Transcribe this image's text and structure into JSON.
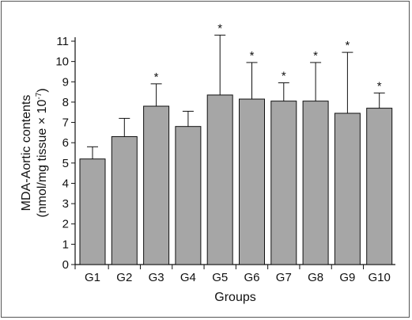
{
  "chart_data": {
    "type": "bar",
    "xlabel": "Groups",
    "ylabel_line1": "MDA-Aortic contents",
    "ylabel_line2": "(nmol/mg tissue × 10",
    "ylabel_sup": "-7",
    "ylabel_close": ")",
    "ylim": [
      0,
      11
    ],
    "yticks": [
      0,
      1,
      2,
      3,
      4,
      5,
      6,
      7,
      8,
      9,
      10,
      11
    ],
    "categories": [
      "G1",
      "G2",
      "G3",
      "G4",
      "G5",
      "G6",
      "G7",
      "G8",
      "G9",
      "G10"
    ],
    "values": [
      5.2,
      6.3,
      7.8,
      6.8,
      8.35,
      8.15,
      8.05,
      8.05,
      7.45,
      7.7
    ],
    "error_upper": [
      5.8,
      7.2,
      8.9,
      7.55,
      11.3,
      9.95,
      8.95,
      9.95,
      10.45,
      8.45
    ],
    "significance": [
      "",
      "",
      "*",
      "",
      "*",
      "*",
      "*",
      "*",
      "*",
      "*"
    ],
    "bar_color": "#a6a6a6",
    "grid": false
  }
}
